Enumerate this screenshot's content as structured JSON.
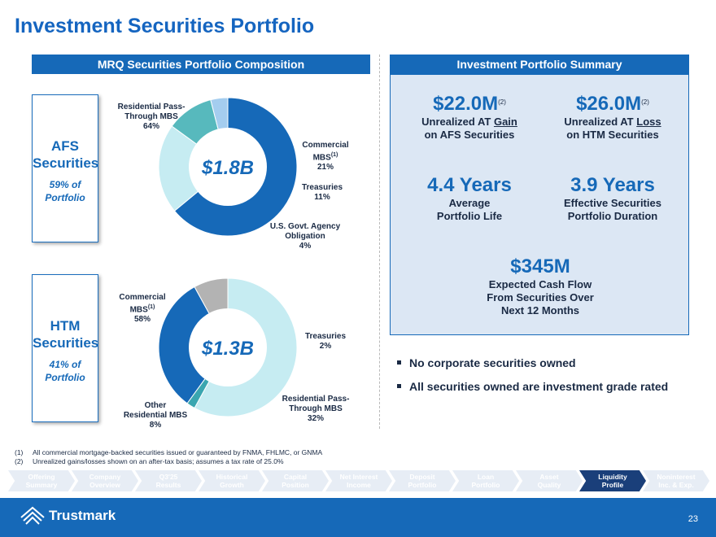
{
  "title": "Investment Securities Portfolio",
  "left_header": "MRQ Securities Portfolio Composition",
  "right_header": "Investment Portfolio Summary",
  "afs": {
    "title_line1": "AFS",
    "title_line2": "Securities",
    "pct_line1": "59% of",
    "pct_line2": "Portfolio"
  },
  "htm": {
    "title_line1": "HTM",
    "title_line2": "Securities",
    "pct_line1": "41% of",
    "pct_line2": "Portfolio"
  },
  "chart_data": [
    {
      "type": "pie",
      "center_value": "$1.8B",
      "slices": [
        {
          "label": "Residential Pass-Through MBS",
          "value": 64,
          "color": "#1669b8"
        },
        {
          "label": "Commercial MBS(1)",
          "value": 21,
          "color": "#c6ecf2"
        },
        {
          "label": "Treasuries",
          "value": 11,
          "color": "#57b9bd"
        },
        {
          "label": "U.S. Govt. Agency Obligation",
          "value": 4,
          "color": "#a4cdef"
        }
      ],
      "labels": {
        "s0_l1": "Residential Pass-",
        "s0_l2": "Through MBS",
        "s0_pct": "64%",
        "s1_l1": "Commercial",
        "s1_l2": "MBS",
        "s1_sup": "(1)",
        "s1_pct": "21%",
        "s2_l1": "Treasuries",
        "s2_pct": "11%",
        "s3_l1": "U.S. Govt. Agency",
        "s3_l2": "Obligation",
        "s3_pct": "4%"
      }
    },
    {
      "type": "pie",
      "center_value": "$1.3B",
      "slices": [
        {
          "label": "Commercial MBS(1)",
          "value": 58,
          "color": "#c6ecf2"
        },
        {
          "label": "Treasuries",
          "value": 2,
          "color": "#3aa6b0"
        },
        {
          "label": "Residential Pass-Through MBS",
          "value": 32,
          "color": "#1669b8"
        },
        {
          "label": "Other Residential MBS",
          "value": 8,
          "color": "#b3b3b3"
        }
      ],
      "labels": {
        "s0_l1": "Commercial",
        "s0_l2": "MBS",
        "s0_sup": "(1)",
        "s0_pct": "58%",
        "s1_l1": "Treasuries",
        "s1_pct": "2%",
        "s2_l1": "Residential Pass-",
        "s2_l2": "Through MBS",
        "s2_pct": "32%",
        "s3_l1": "Other",
        "s3_l2": "Residential MBS",
        "s3_pct": "8%"
      }
    }
  ],
  "summary": {
    "m1_value": "$22.0M",
    "m1_sup": "(2)",
    "m1_line1_pre": "Unrealized AT ",
    "m1_line1_u": "Gain",
    "m1_line2": "on AFS Securities",
    "m2_value": "$26.0M",
    "m2_sup": "(2)",
    "m2_line1_pre": "Unrealized AT ",
    "m2_line1_u": "Loss",
    "m2_line2": "on HTM Securities",
    "m3_value": "4.4 Years",
    "m3_line1": "Average",
    "m3_line2": "Portfolio Life",
    "m4_value": "3.9 Years",
    "m4_line1": "Effective Securities",
    "m4_line2": "Portfolio Duration",
    "m5_value": "$345M",
    "m5_line1": "Expected Cash Flow",
    "m5_line2": "From Securities Over",
    "m5_line3": "Next 12 Months"
  },
  "bullets": [
    "No corporate securities owned",
    "All securities owned are investment grade rated"
  ],
  "footnotes": [
    {
      "num": "(1)",
      "text": "All commercial mortgage-backed securities issued or guaranteed by FNMA, FHLMC, or GNMA"
    },
    {
      "num": "(2)",
      "text": "Unrealized gains/losses shown on an after-tax basis; assumes a tax rate of 25.0%"
    }
  ],
  "nav": [
    {
      "l1": "Offering",
      "l2": "Summary"
    },
    {
      "l1": "Company",
      "l2": "Overview"
    },
    {
      "l1": "Q3'25",
      "l2": "Results"
    },
    {
      "l1": "Historical",
      "l2": "Growth"
    },
    {
      "l1": "Capital",
      "l2": "Position"
    },
    {
      "l1": "Net Interest",
      "l2": "Income"
    },
    {
      "l1": "Deposit",
      "l2": "Portfolio"
    },
    {
      "l1": "Loan",
      "l2": "Portfolio"
    },
    {
      "l1": "Asset",
      "l2": "Quality"
    },
    {
      "l1": "Liquidity",
      "l2": "Profile"
    },
    {
      "l1": "Noninterest",
      "l2": "Inc. & Exp."
    }
  ],
  "nav_active_index": 9,
  "logo_text": "Trustmark",
  "page_number": "23"
}
